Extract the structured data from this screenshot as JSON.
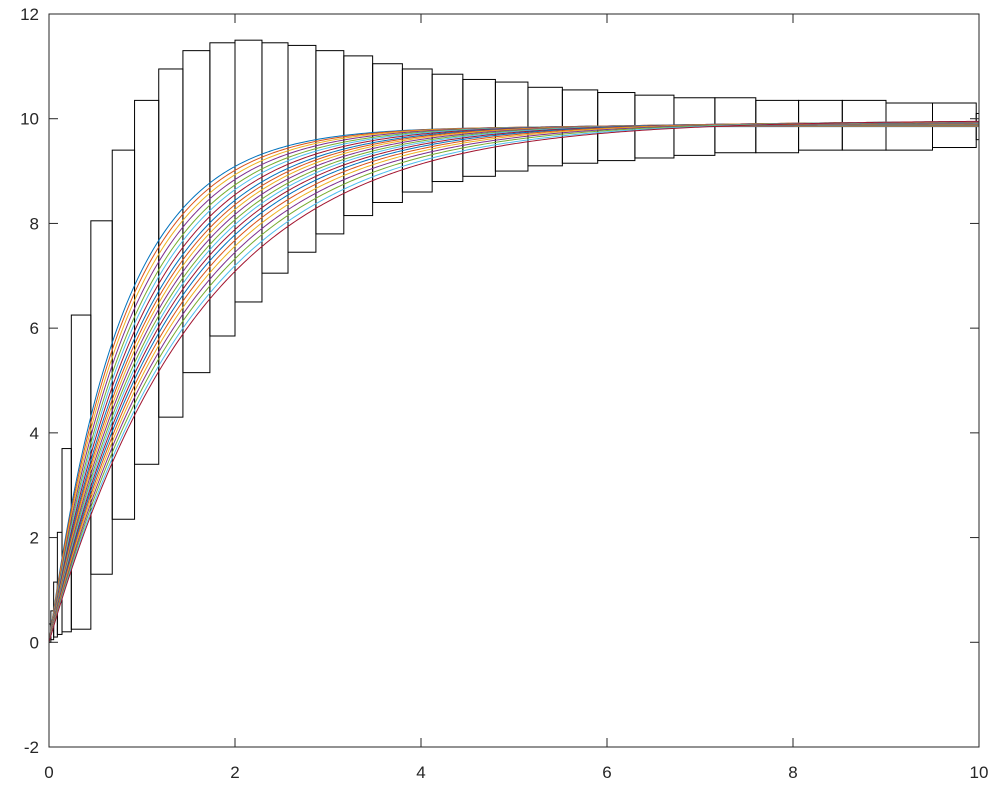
{
  "chart_data": {
    "type": "line",
    "title": "",
    "xlabel": "",
    "ylabel": "",
    "xlim": [
      0,
      10
    ],
    "ylim": [
      -2,
      12
    ],
    "grid": false,
    "legend": "none",
    "x_ticks": [
      {
        "value": 0,
        "label": "0"
      },
      {
        "value": 2,
        "label": "2"
      },
      {
        "value": 4,
        "label": "4"
      },
      {
        "value": 6,
        "label": "6"
      },
      {
        "value": 8,
        "label": "8"
      },
      {
        "value": 10,
        "label": "10"
      }
    ],
    "y_ticks": [
      {
        "value": -2,
        "label": "-2"
      },
      {
        "value": 0,
        "label": "0"
      },
      {
        "value": 2,
        "label": "2"
      },
      {
        "value": 4,
        "label": "4"
      },
      {
        "value": 6,
        "label": "6"
      },
      {
        "value": 8,
        "label": "8"
      },
      {
        "value": 10,
        "label": "10"
      },
      {
        "value": 12,
        "label": "12"
      }
    ],
    "enclosure_boxes": [
      {
        "t0": 0.0,
        "t1": 0.02,
        "lo": 0.0,
        "hi": 0.35
      },
      {
        "t0": 0.02,
        "t1": 0.05,
        "lo": 0.05,
        "hi": 0.6
      },
      {
        "t0": 0.05,
        "t1": 0.09,
        "lo": 0.1,
        "hi": 1.15
      },
      {
        "t0": 0.09,
        "t1": 0.14,
        "lo": 0.15,
        "hi": 2.1
      },
      {
        "t0": 0.14,
        "t1": 0.24,
        "lo": 0.2,
        "hi": 3.7
      },
      {
        "t0": 0.24,
        "t1": 0.45,
        "lo": 0.25,
        "hi": 6.25
      },
      {
        "t0": 0.45,
        "t1": 0.68,
        "lo": 1.3,
        "hi": 8.05
      },
      {
        "t0": 0.68,
        "t1": 0.92,
        "lo": 2.35,
        "hi": 9.4
      },
      {
        "t0": 0.92,
        "t1": 1.18,
        "lo": 3.4,
        "hi": 10.35
      },
      {
        "t0": 1.18,
        "t1": 1.44,
        "lo": 4.3,
        "hi": 10.95
      },
      {
        "t0": 1.44,
        "t1": 1.73,
        "lo": 5.15,
        "hi": 11.3
      },
      {
        "t0": 1.73,
        "t1": 2.0,
        "lo": 5.85,
        "hi": 11.45
      },
      {
        "t0": 2.0,
        "t1": 2.29,
        "lo": 6.5,
        "hi": 11.5
      },
      {
        "t0": 2.29,
        "t1": 2.57,
        "lo": 7.05,
        "hi": 11.45
      },
      {
        "t0": 2.57,
        "t1": 2.87,
        "lo": 7.45,
        "hi": 11.4
      },
      {
        "t0": 2.87,
        "t1": 3.17,
        "lo": 7.8,
        "hi": 11.3
      },
      {
        "t0": 3.17,
        "t1": 3.48,
        "lo": 8.15,
        "hi": 11.2
      },
      {
        "t0": 3.48,
        "t1": 3.8,
        "lo": 8.4,
        "hi": 11.05
      },
      {
        "t0": 3.8,
        "t1": 4.12,
        "lo": 8.6,
        "hi": 10.95
      },
      {
        "t0": 4.12,
        "t1": 4.45,
        "lo": 8.8,
        "hi": 10.85
      },
      {
        "t0": 4.45,
        "t1": 4.8,
        "lo": 8.9,
        "hi": 10.75
      },
      {
        "t0": 4.8,
        "t1": 5.15,
        "lo": 9.0,
        "hi": 10.7
      },
      {
        "t0": 5.15,
        "t1": 5.52,
        "lo": 9.1,
        "hi": 10.6
      },
      {
        "t0": 5.52,
        "t1": 5.9,
        "lo": 9.15,
        "hi": 10.55
      },
      {
        "t0": 5.9,
        "t1": 6.3,
        "lo": 9.2,
        "hi": 10.5
      },
      {
        "t0": 6.3,
        "t1": 6.72,
        "lo": 9.25,
        "hi": 10.45
      },
      {
        "t0": 6.72,
        "t1": 7.16,
        "lo": 9.3,
        "hi": 10.4
      },
      {
        "t0": 7.16,
        "t1": 7.6,
        "lo": 9.35,
        "hi": 10.4
      },
      {
        "t0": 7.6,
        "t1": 8.06,
        "lo": 9.35,
        "hi": 10.35
      },
      {
        "t0": 8.06,
        "t1": 8.53,
        "lo": 9.4,
        "hi": 10.35
      },
      {
        "t0": 8.53,
        "t1": 9.0,
        "lo": 9.4,
        "hi": 10.35
      },
      {
        "t0": 9.0,
        "t1": 9.5,
        "lo": 9.4,
        "hi": 10.3
      },
      {
        "t0": 9.5,
        "t1": 9.97,
        "lo": 9.45,
        "hi": 10.3
      },
      {
        "t0": 9.97,
        "t1": 10.0,
        "lo": 9.6,
        "hi": 10.1
      }
    ],
    "trajectory_model": "y(t) = a * (1 - exp(-k * t))",
    "trajectories": [
      {
        "a": 9.85,
        "k": 1.28,
        "color": "#0072bd"
      },
      {
        "a": 9.856,
        "k": 1.23,
        "color": "#d95319"
      },
      {
        "a": 9.862,
        "k": 1.18,
        "color": "#edb120"
      },
      {
        "a": 9.868,
        "k": 1.13,
        "color": "#7e2f8e"
      },
      {
        "a": 9.874,
        "k": 1.08,
        "color": "#77ac30"
      },
      {
        "a": 9.88,
        "k": 1.04,
        "color": "#4dbeee"
      },
      {
        "a": 9.886,
        "k": 1.0,
        "color": "#a2142f"
      },
      {
        "a": 9.892,
        "k": 0.96,
        "color": "#0072bd"
      },
      {
        "a": 9.898,
        "k": 0.93,
        "color": "#d95319"
      },
      {
        "a": 9.904,
        "k": 0.9,
        "color": "#edb120"
      },
      {
        "a": 9.91,
        "k": 0.87,
        "color": "#7e2f8e"
      },
      {
        "a": 9.916,
        "k": 0.84,
        "color": "#77ac30"
      },
      {
        "a": 9.922,
        "k": 0.815,
        "color": "#4dbeee"
      },
      {
        "a": 9.928,
        "k": 0.79,
        "color": "#a2142f"
      },
      {
        "a": 9.934,
        "k": 0.765,
        "color": "#0072bd"
      },
      {
        "a": 9.94,
        "k": 0.74,
        "color": "#d95319"
      },
      {
        "a": 9.946,
        "k": 0.715,
        "color": "#edb120"
      },
      {
        "a": 9.952,
        "k": 0.69,
        "color": "#7e2f8e"
      },
      {
        "a": 9.958,
        "k": 0.665,
        "color": "#77ac30"
      },
      {
        "a": 9.964,
        "k": 0.64,
        "color": "#4dbeee"
      },
      {
        "a": 9.97,
        "k": 0.62,
        "color": "#a2142f"
      }
    ]
  }
}
